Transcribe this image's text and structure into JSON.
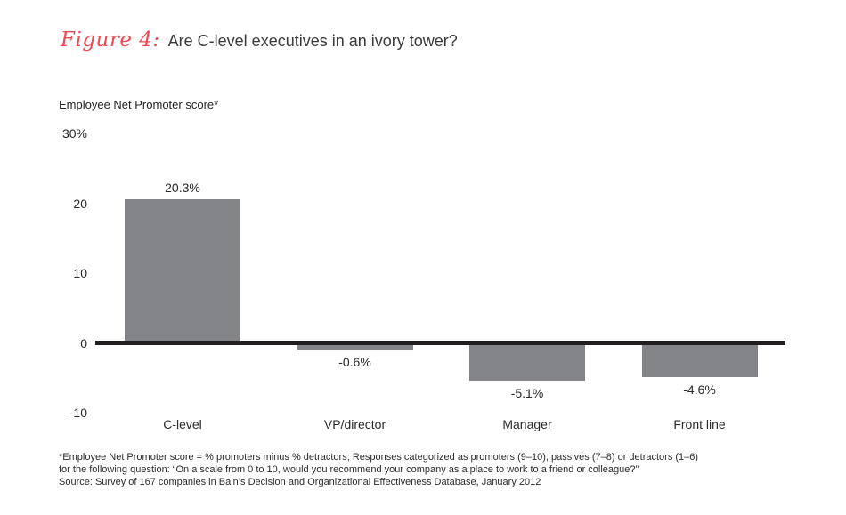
{
  "figure": {
    "label": "Figure 4:",
    "title": "Are C-level executives in an ivory tower?"
  },
  "chart_data": {
    "type": "bar",
    "title": "Figure 4: Are C-level executives in an ivory tower?",
    "ylabel": "Employee Net Promoter score*",
    "xlabel": "",
    "categories": [
      "C-level",
      "VP/director",
      "Manager",
      "Front line"
    ],
    "values": [
      20.3,
      -0.6,
      -5.1,
      -4.6
    ],
    "value_labels": [
      "20.3%",
      "-0.6%",
      "-5.1%",
      "-4.6%"
    ],
    "ylim": [
      -10,
      30
    ],
    "yticks": [
      {
        "label": "30%",
        "value": 30
      },
      {
        "label": "20",
        "value": 20
      },
      {
        "label": "10",
        "value": 10
      },
      {
        "label": "0",
        "value": 0
      },
      {
        "label": "-10",
        "value": -10
      }
    ],
    "grid": false,
    "legend": "none",
    "bar_color": "#828487",
    "baseline_color": "#231f20",
    "accent_color": "#ee4953"
  },
  "footnote": {
    "lines": [
      "*Employee Net Promoter score = % promoters minus % detractors; Responses categorized as promoters (9–10), passives (7–8) or detractors (1–6)",
      "for the following question: “On a scale from 0 to 10, would you recommend your company as a place to work to a friend or colleague?”",
      "Source: Survey of 167 companies in Bain’s Decision and Organizational Effectiveness Database, January 2012"
    ]
  }
}
